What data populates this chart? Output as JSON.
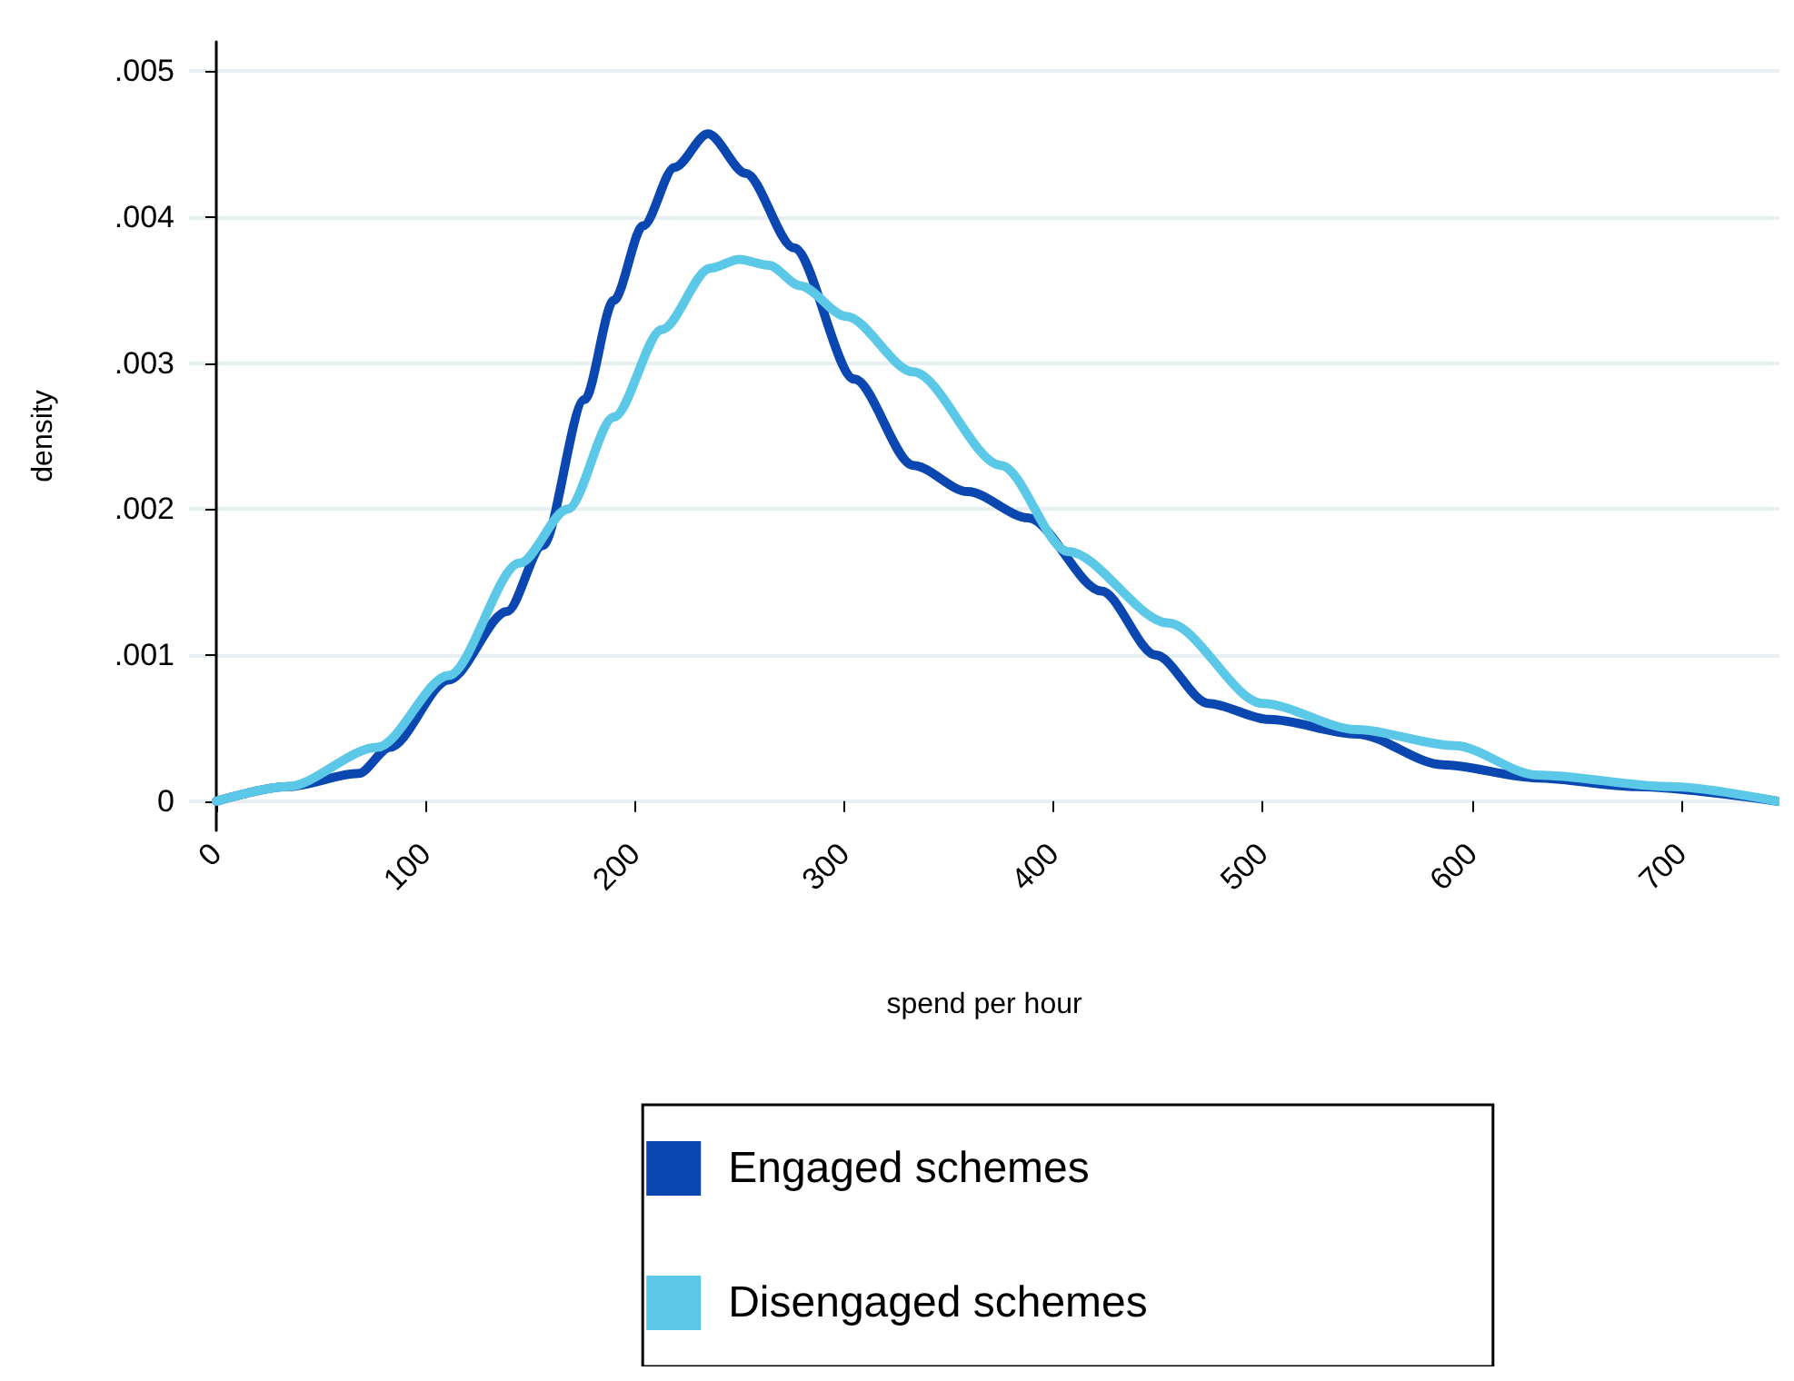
{
  "chart_data": {
    "type": "line",
    "xlabel": "spend per hour",
    "ylabel": "density",
    "xlim": [
      -13,
      747
    ],
    "ylim": [
      -0.0002,
      0.0052
    ],
    "xticks": [
      0,
      100,
      200,
      300,
      400,
      500,
      600,
      700
    ],
    "yticks": [
      {
        "value": 0,
        "label": "0"
      },
      {
        "value": 0.001,
        "label": ".001"
      },
      {
        "value": 0.002,
        "label": ".002"
      },
      {
        "value": 0.003,
        "label": ".003"
      },
      {
        "value": 0.004,
        "label": ".004"
      },
      {
        "value": 0.005,
        "label": ".005"
      }
    ],
    "grid": "y",
    "legend": "bottom",
    "line_style": "solid",
    "marker": "none",
    "series": [
      {
        "name": "Engaged schemes",
        "color": "#0a47b0",
        "x": [
          0,
          34,
          68,
          83,
          111,
          139,
          156,
          176,
          190,
          204,
          219,
          235,
          253,
          276,
          305,
          333,
          359,
          388,
          423,
          449,
          474,
          503,
          545,
          586,
          631,
          679,
          746
        ],
        "values": [
          0,
          0.0001,
          0.00019,
          0.00037,
          0.00083,
          0.0013,
          0.00175,
          0.00275,
          0.00343,
          0.00394,
          0.00434,
          0.00457,
          0.0043,
          0.00379,
          0.00289,
          0.0023,
          0.00212,
          0.00194,
          0.00144,
          0.001,
          0.00067,
          0.00056,
          0.00046,
          0.00025,
          0.00016,
          0.0001,
          0
        ]
      },
      {
        "name": "Disengaged schemes",
        "color": "#5bc8e8",
        "x": [
          0,
          34,
          77,
          111,
          145,
          168,
          190,
          213,
          236,
          250,
          264,
          279,
          301,
          333,
          375,
          407,
          455,
          500,
          545,
          592,
          631,
          695,
          746
        ],
        "values": [
          0,
          0.0001,
          0.00037,
          0.00086,
          0.00163,
          0.002,
          0.00263,
          0.00323,
          0.00365,
          0.00371,
          0.00367,
          0.00353,
          0.00332,
          0.00294,
          0.0023,
          0.00171,
          0.00122,
          0.00067,
          0.00049,
          0.00038,
          0.00018,
          0.0001,
          0
        ]
      }
    ]
  }
}
